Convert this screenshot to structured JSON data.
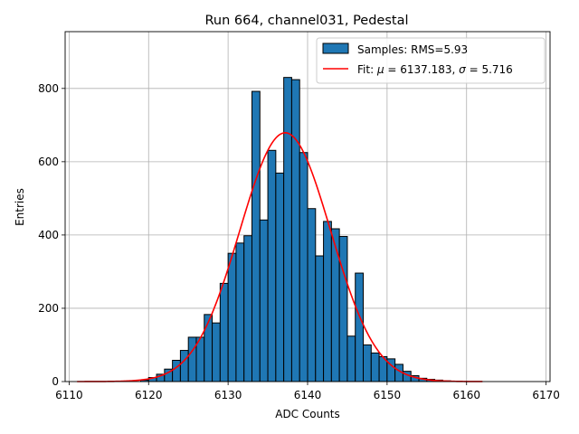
{
  "chart_data": {
    "type": "bar",
    "title": "Run 664, channel031, Pedestal",
    "xlabel": "ADC Counts",
    "ylabel": "Entries",
    "xlim": [
      6109.5,
      6170.5
    ],
    "ylim": [
      0,
      955
    ],
    "xticks": [
      6110,
      6120,
      6130,
      6140,
      6150,
      6160,
      6170
    ],
    "yticks": [
      0,
      200,
      400,
      600,
      800
    ],
    "grid": true,
    "legend_position": "top-right",
    "bin_width": 1,
    "histogram": {
      "name": "Samples: RMS=5.93",
      "color": "#1f77b4",
      "edgecolor": "#000000",
      "bins": [
        [
          6119,
          4
        ],
        [
          6120,
          11
        ],
        [
          6121,
          20
        ],
        [
          6122,
          34
        ],
        [
          6123,
          58
        ],
        [
          6124,
          85
        ],
        [
          6125,
          121
        ],
        [
          6126,
          121
        ],
        [
          6127,
          183
        ],
        [
          6128,
          160
        ],
        [
          6129,
          268
        ],
        [
          6130,
          350
        ],
        [
          6131,
          378
        ],
        [
          6132,
          398
        ],
        [
          6133,
          792
        ],
        [
          6134,
          441
        ],
        [
          6135,
          631
        ],
        [
          6136,
          569
        ],
        [
          6137,
          830
        ],
        [
          6138,
          824
        ],
        [
          6139,
          625
        ],
        [
          6140,
          472
        ],
        [
          6141,
          343
        ],
        [
          6142,
          437
        ],
        [
          6143,
          417
        ],
        [
          6144,
          396
        ],
        [
          6145,
          124
        ],
        [
          6146,
          296
        ],
        [
          6147,
          100
        ],
        [
          6148,
          78
        ],
        [
          6149,
          68
        ],
        [
          6150,
          62
        ],
        [
          6151,
          47
        ],
        [
          6152,
          28
        ],
        [
          6153,
          16
        ],
        [
          6154,
          9
        ],
        [
          6155,
          6
        ],
        [
          6156,
          4
        ],
        [
          6157,
          2
        ]
      ]
    },
    "fit": {
      "name": "Fit: μ = 6137.183, σ = 5.716",
      "label_prefix": "Fit: ",
      "label_mu": "μ",
      "label_mid": " = 6137.183, ",
      "label_sigma": "σ",
      "label_suffix": " = 5.716",
      "color": "#ff0000",
      "mu": 6137.183,
      "sigma": 5.716,
      "amplitude": 679,
      "x_range": [
        6111,
        6162
      ]
    }
  }
}
